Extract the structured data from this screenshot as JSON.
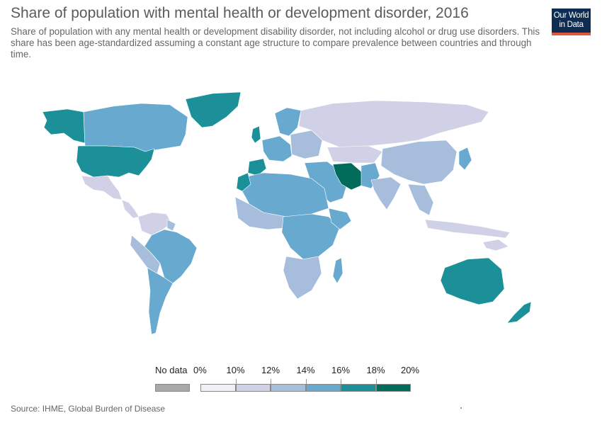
{
  "header": {
    "title": "Share of population with mental health or development disorder, 2016",
    "subtitle": "Share of population with any mental health or development disability disorder, not including alcohol or drug use disorders. This share has been age-standardized assuming a constant age structure to compare prevalence between countries and through time."
  },
  "logo": {
    "line1": "Our World",
    "line2": "in Data"
  },
  "legend": {
    "nodata_label": "No data",
    "nodata_color": "#a8a8a8",
    "bins": [
      {
        "label": "0%",
        "color": "#f2eef7"
      },
      {
        "label": "10%",
        "color": "#d0d1e6"
      },
      {
        "label": "12%",
        "color": "#a6bddb"
      },
      {
        "label": "14%",
        "color": "#67a9cf"
      },
      {
        "label": "16%",
        "color": "#1c9099"
      },
      {
        "label": "18%",
        "color": "#016c59"
      }
    ],
    "last_label": "20%"
  },
  "map_colors": {
    "bin_10_12": "#d0d1e6",
    "bin_12_14": "#a6bddb",
    "bin_14_16": "#67a9cf",
    "bin_16_18": "#1c9099",
    "bin_18_20": "#016c59"
  },
  "footer": {
    "source": "Source: IHME, Global Burden of Disease"
  }
}
